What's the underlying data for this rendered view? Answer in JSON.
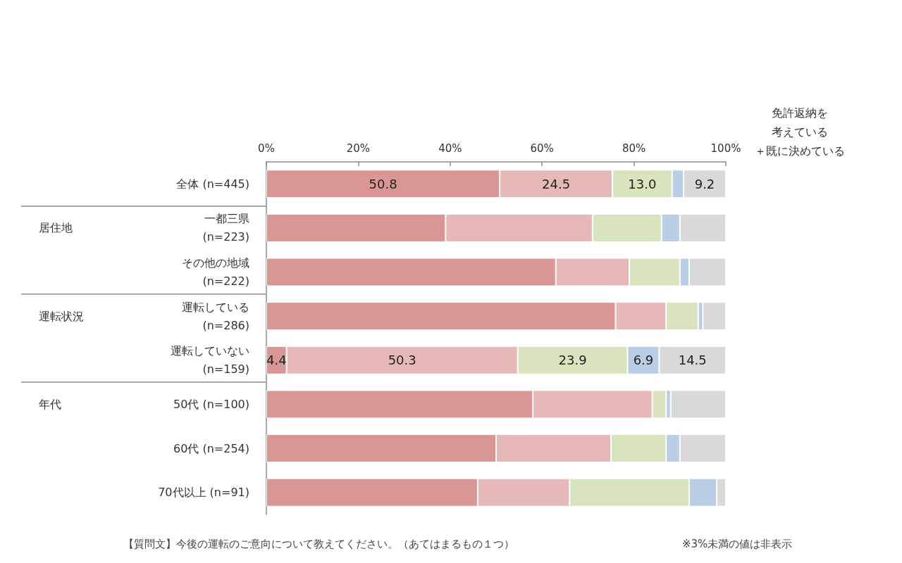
{
  "chart_data": {
    "type": "bar",
    "orientation": "horizontal",
    "stacked": true,
    "categories": [
      "全体 (n=445)",
      "一都三県\n(n=223)",
      "その他の地域\n(n=222)",
      "運転している\n(n=286)",
      "運転していない\n(n=159)",
      "50代 (n=100)",
      "60代 (n=254)",
      "70代以上 (n=91)"
    ],
    "series": [
      {
        "color": "#d99694",
        "values": [
          50.8,
          39,
          63,
          76,
          4.4,
          58,
          50,
          46
        ],
        "value_labels": [
          "50.8",
          null,
          null,
          null,
          "4.4",
          null,
          null,
          null
        ]
      },
      {
        "color": "#e6b9b8",
        "values": [
          24.5,
          32,
          16,
          11,
          50.3,
          26,
          25,
          20
        ],
        "value_labels": [
          "24.5",
          null,
          null,
          null,
          "50.3",
          null,
          null,
          null
        ]
      },
      {
        "color": "#d7e4bd",
        "values": [
          13.0,
          15,
          11,
          7,
          23.9,
          3,
          12,
          26
        ],
        "value_labels": [
          "13.0",
          null,
          null,
          null,
          "23.9",
          null,
          null,
          null
        ]
      },
      {
        "color": "#b9cde5",
        "values": [
          2.5,
          4,
          2,
          1,
          6.9,
          1,
          3,
          6
        ],
        "value_labels": [
          null,
          null,
          null,
          null,
          "6.9",
          null,
          null,
          null
        ]
      },
      {
        "color": "#d9d9d9",
        "values": [
          9.2,
          10,
          8,
          5,
          14.5,
          12,
          10,
          2
        ],
        "value_labels": [
          "9.2",
          null,
          null,
          null,
          "14.5",
          null,
          null,
          null
        ]
      }
    ],
    "xlim": [
      0,
      100
    ],
    "xticks": [
      {
        "value": 0,
        "label": "0%"
      },
      {
        "value": 20,
        "label": "20%"
      },
      {
        "value": 40,
        "label": "40%"
      },
      {
        "value": 60,
        "label": "60%"
      },
      {
        "value": 80,
        "label": "80%"
      },
      {
        "value": 100,
        "label": "100%"
      }
    ],
    "annotations": [
      "居住地",
      "運転状況",
      "年代",
      "免許返納を",
      "考えている",
      "＋既に決めている",
      "【質問文】今後の運転のご意向について教えてください。（あてはまるもの１つ）",
      "※3%未満の値は非表示"
    ]
  }
}
